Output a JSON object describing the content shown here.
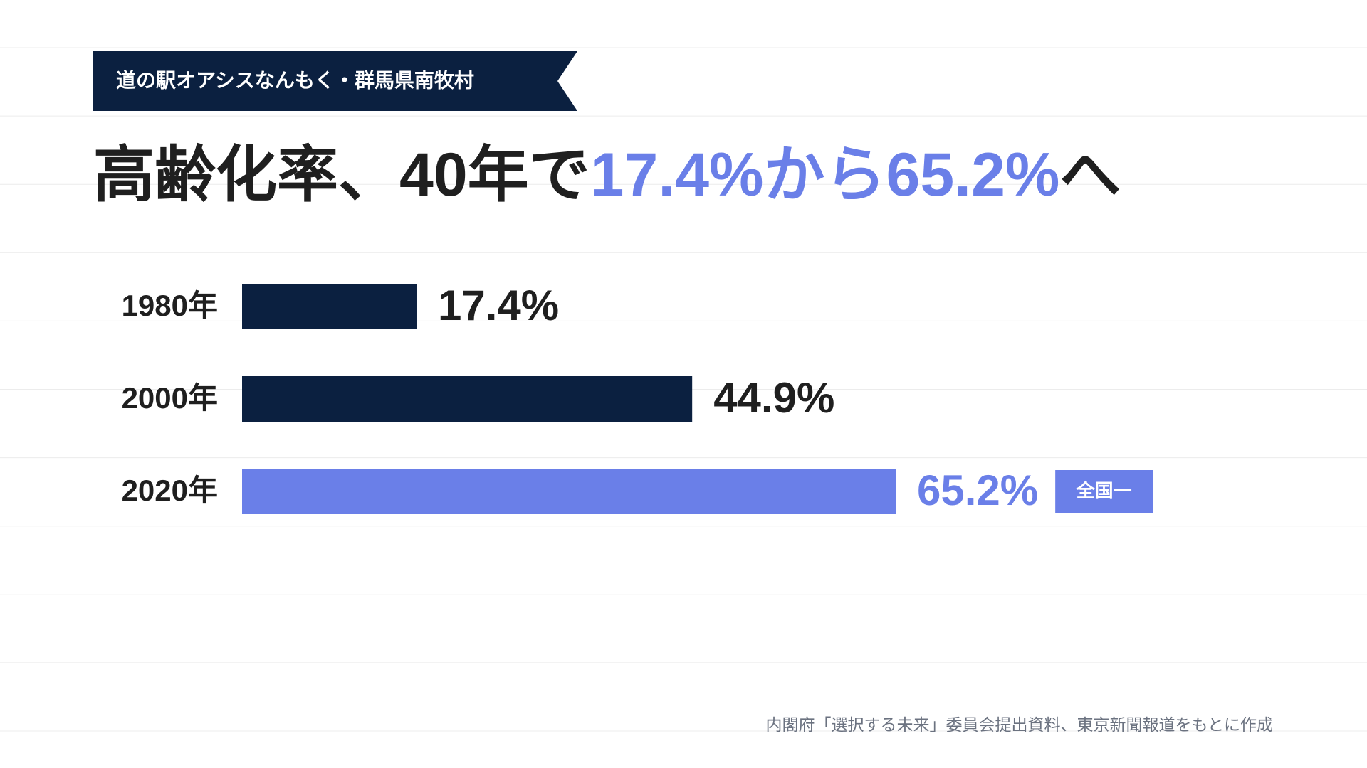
{
  "chart_data": {
    "type": "bar",
    "orientation": "horizontal",
    "tag": "道の駅オアシスなんもく・群馬県南牧村",
    "title_parts": [
      {
        "text": "高齢化率、40年で",
        "color": "#1f1f1f"
      },
      {
        "text": "17.4%から65.2%",
        "color": "#6a7fe8"
      },
      {
        "text": "へ",
        "color": "#1f1f1f"
      }
    ],
    "categories": [
      "1980年",
      "2000年",
      "2020年"
    ],
    "values": [
      17.4,
      44.9,
      65.2
    ],
    "value_labels": [
      "17.4%",
      "44.9%",
      "65.2%"
    ],
    "colors": [
      "#0b2040",
      "#0b2040",
      "#6a7fe8"
    ],
    "label_colors": [
      "#1f1f1f",
      "#1f1f1f",
      "#6a7fe8"
    ],
    "badge": {
      "index": 2,
      "text": "全国一",
      "color": "#6a7fe8"
    },
    "source": "内閣府「選択する未来」委員会提出資料、東京新聞報道をもとに作成"
  }
}
